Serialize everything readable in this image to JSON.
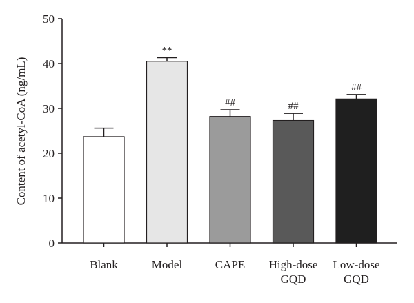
{
  "chart_data": {
    "type": "bar",
    "title": "",
    "xlabel": "",
    "ylabel": "Content of acetyl-CoA (ng/mL)",
    "ylim": [
      0,
      50
    ],
    "yticks": [
      0,
      10,
      20,
      30,
      40,
      50
    ],
    "grid": false,
    "legend": "none",
    "categories": [
      [
        "Blank"
      ],
      [
        "Model"
      ],
      [
        "CAPE"
      ],
      [
        "High-dose",
        "GQD"
      ],
      [
        "Low-dose",
        "GQD"
      ]
    ],
    "values": [
      23.7,
      40.5,
      28.2,
      27.3,
      32.1
    ],
    "errors": [
      1.9,
      0.8,
      1.5,
      1.6,
      1.0
    ],
    "annotations": [
      "",
      "**",
      "##",
      "##",
      "##"
    ],
    "colors": [
      "#ffffff",
      "#e6e6e6",
      "#9b9b9b",
      "#595959",
      "#1f1f1f"
    ]
  }
}
